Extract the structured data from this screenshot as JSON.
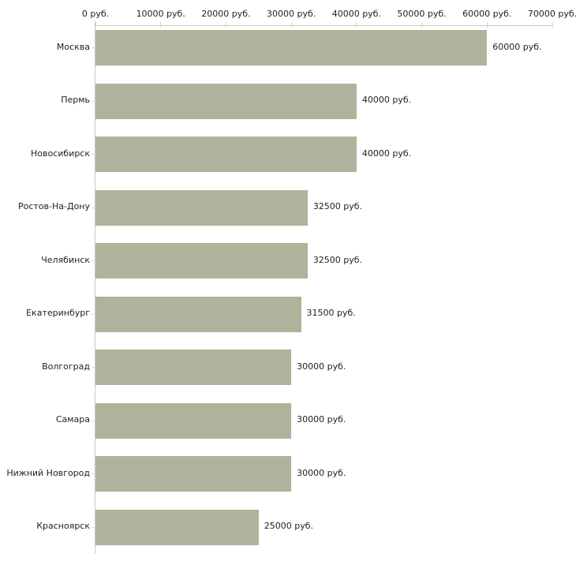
{
  "chart_data": {
    "type": "bar",
    "orientation": "horizontal",
    "title": "",
    "xlabel": "",
    "ylabel": "",
    "unit": "руб.",
    "categories": [
      "Москва",
      "Пермь",
      "Новосибирск",
      "Ростов-На-Дону",
      "Челябинск",
      "Екатеринбург",
      "Волгоград",
      "Самара",
      "Нижний Новгород",
      "Красноярск"
    ],
    "values": [
      60000,
      40000,
      40000,
      32500,
      32500,
      31500,
      30000,
      30000,
      30000,
      25000
    ],
    "value_labels": [
      "60000 руб.",
      "40000 руб.",
      "40000 руб.",
      "32500 руб.",
      "32500 руб.",
      "31500 руб.",
      "30000 руб.",
      "30000 руб.",
      "30000 руб.",
      "25000 руб."
    ],
    "x_ticks": [
      0,
      10000,
      20000,
      30000,
      40000,
      50000,
      60000,
      70000
    ],
    "x_tick_labels": [
      "0 руб.",
      "10000 руб.",
      "20000 руб.",
      "30000 руб.",
      "40000 руб.",
      "50000 руб.",
      "60000 руб.",
      "70000 руб."
    ],
    "xlim": [
      0,
      70000
    ],
    "grid": false,
    "legend": null,
    "colors": {
      "bar": "#aeb49b",
      "axis_line": "#c9c9c9",
      "tick": "#dbddbf",
      "text": "#1f1f1f",
      "background": "#ffffff"
    }
  }
}
